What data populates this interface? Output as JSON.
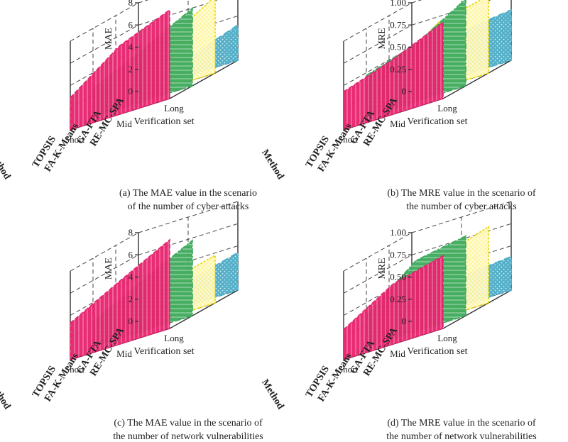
{
  "figure": {
    "verification_axis_title": "Verification set",
    "method_axis_title": "Method",
    "verification_ticks": [
      "Short",
      "Mid",
      "Long"
    ],
    "methods": [
      "RE-MC-SPA",
      "GA-FTA",
      "FA-K-Means",
      "TOPSIS"
    ]
  },
  "colors": {
    "RE-MC-SPA": "#4bacc6",
    "GA-FTA": "#fff59d",
    "FA-K-Means": "#3daa5c",
    "TOPSIS": "#e8226e",
    "GA-FTA-outline": "#e6d600",
    "FA-K-Means-alt": "#8cc63f"
  },
  "chart_data": [
    {
      "type": "area",
      "panel": "a",
      "caption_lines": [
        "(a) The MAE value in the scenario",
        "of the number of cyber attacks"
      ],
      "zlabel": "MAE",
      "zlim": [
        0,
        8
      ],
      "zticks": [
        "0",
        "2",
        "4",
        "6",
        "8"
      ],
      "categories": [
        "Short",
        "Mid",
        "Long"
      ],
      "series": [
        {
          "name": "RE-MC-SPA",
          "values": [
            0.6,
            1.6,
            3.2
          ]
        },
        {
          "name": "GA-FTA",
          "values": [
            1.9,
            4.3,
            6.9
          ]
        },
        {
          "name": "FA-K-Means",
          "values": [
            2.6,
            4.7,
            7.0
          ]
        },
        {
          "name": "TOPSIS",
          "values": [
            2.9,
            6.2,
            9.1
          ]
        }
      ]
    },
    {
      "type": "area",
      "panel": "b",
      "caption_lines": [
        "(b) The MRE value in the scenario of",
        "the number of cyber attacks"
      ],
      "zlabel": "MRE",
      "zlim": [
        0,
        1.0
      ],
      "zticks": [
        "0",
        "0.25",
        "0.50",
        "0.75",
        "1.00"
      ],
      "categories": [
        "Short",
        "Mid",
        "Long"
      ],
      "series": [
        {
          "name": "RE-MC-SPA",
          "values": [
            0.31,
            0.5,
            0.57
          ]
        },
        {
          "name": "GA-FTA",
          "values": [
            0.33,
            0.75,
            0.87
          ]
        },
        {
          "name": "FA-K-Means",
          "values": [
            0.47,
            0.65,
            0.98
          ]
        },
        {
          "name": "TOPSIS",
          "values": [
            0.43,
            0.62,
            0.86
          ]
        }
      ]
    },
    {
      "type": "area",
      "panel": "c",
      "caption_lines": [
        "(c) The MAE value in the scenario of",
        "the number of network vulnerabilities"
      ],
      "zlabel": "MAE",
      "zlim": [
        0,
        8
      ],
      "zticks": [
        "0",
        "2",
        "4",
        "6",
        "8"
      ],
      "categories": [
        "Short",
        "Mid",
        "Long"
      ],
      "series": [
        {
          "name": "RE-MC-SPA",
          "values": [
            0.6,
            2.2,
            3.4
          ]
        },
        {
          "name": "GA-FTA",
          "values": [
            1.1,
            3.1,
            4.3
          ]
        },
        {
          "name": "FA-K-Means",
          "values": [
            2.3,
            4.6,
            6.8
          ]
        },
        {
          "name": "TOPSIS",
          "values": [
            3.3,
            5.7,
            8.4
          ]
        }
      ]
    },
    {
      "type": "area",
      "panel": "d",
      "caption_lines": [
        "(d) The MRE value in the scenario of",
        "the number of network vulnerabilities"
      ],
      "zlabel": "MRE",
      "zlim": [
        0,
        1.0
      ],
      "zticks": [
        "0",
        "0.25",
        "0.50",
        "0.75",
        "1.00"
      ],
      "categories": [
        "Short",
        "Mid",
        "Long"
      ],
      "series": [
        {
          "name": "RE-MC-SPA",
          "values": [
            0.28,
            0.33,
            0.38
          ]
        },
        {
          "name": "GA-FTA",
          "values": [
            0.26,
            0.68,
            0.86
          ]
        },
        {
          "name": "FA-K-Means",
          "values": [
            0.35,
            0.8,
            0.9
          ]
        },
        {
          "name": "TOPSIS",
          "values": [
            0.34,
            0.68,
            0.82
          ]
        }
      ]
    }
  ]
}
